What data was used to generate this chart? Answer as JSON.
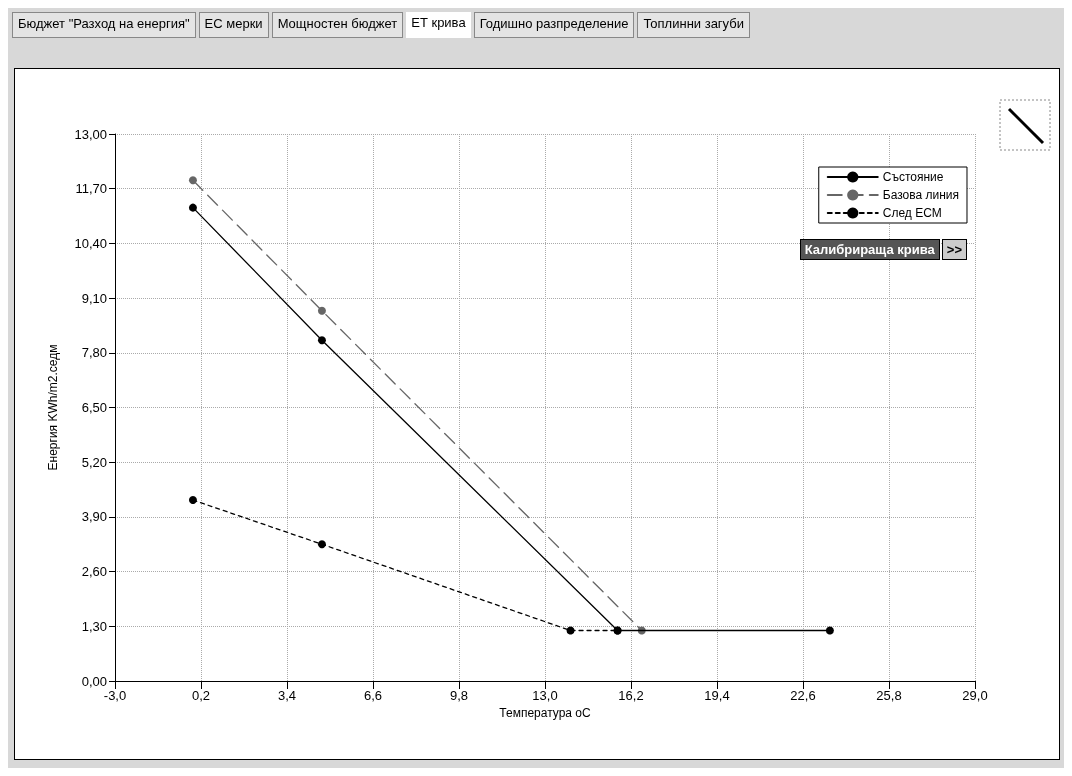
{
  "chart_data": {
    "type": "line",
    "annotations": [
      "Бюджет \"Разход на енергия\"",
      "ЕС мерки",
      "Мощностен бюджет",
      "ЕТ крива",
      "Годишно разпределение",
      "Топлинни загуби",
      "Калибрираща крива",
      ">>"
    ],
    "xlabel": "Температура оС",
    "ylabel": "Енергия KWh/m2.седм",
    "series": [
      {
        "name": "Състояние",
        "color": "#000000",
        "line_style": "solid",
        "x": [
          -0.1,
          4.7,
          15.7,
          23.6
        ],
        "values": [
          11.25,
          8.1,
          1.2,
          1.2
        ]
      },
      {
        "name": "Базова линия",
        "color": "#666666",
        "line_style": "dashed",
        "x": [
          -0.1,
          4.7,
          16.6
        ],
        "values": [
          11.9,
          8.8,
          1.2
        ]
      },
      {
        "name": "След ЕСМ",
        "color": "#000000",
        "line_style": "dotted",
        "x": [
          -0.1,
          4.7,
          13.95,
          15.7
        ],
        "values": [
          4.3,
          3.25,
          1.2,
          1.2
        ]
      }
    ],
    "marker": "circle",
    "grid": true,
    "legend": "top right",
    "xlim": [
      -3,
      29
    ],
    "ylim": [
      0,
      13
    ],
    "xticks": [
      {
        "value": -3,
        "label": "-3,0"
      },
      {
        "value": 0.2,
        "label": "0,2"
      },
      {
        "value": 3.4,
        "label": "3,4"
      },
      {
        "value": 6.6,
        "label": "6,6"
      },
      {
        "value": 9.8,
        "label": "9,8"
      },
      {
        "value": 13,
        "label": "13,0"
      },
      {
        "value": 16.2,
        "label": "16,2"
      },
      {
        "value": 19.4,
        "label": "19,4"
      },
      {
        "value": 22.6,
        "label": "22,6"
      },
      {
        "value": 25.8,
        "label": "25,8"
      },
      {
        "value": 29,
        "label": "29,0"
      }
    ],
    "yticks": [
      {
        "value": 0,
        "label": "0,00"
      },
      {
        "value": 1.3,
        "label": "1,30"
      },
      {
        "value": 2.6,
        "label": "2,60"
      },
      {
        "value": 3.9,
        "label": "3,90"
      },
      {
        "value": 5.2,
        "label": "5,20"
      },
      {
        "value": 6.5,
        "label": "6,50"
      },
      {
        "value": 7.8,
        "label": "7,80"
      },
      {
        "value": 9.1,
        "label": "9,10"
      },
      {
        "value": 10.4,
        "label": "10,40"
      },
      {
        "value": 11.7,
        "label": "11,70"
      },
      {
        "value": 13,
        "label": "13,00"
      }
    ]
  }
}
